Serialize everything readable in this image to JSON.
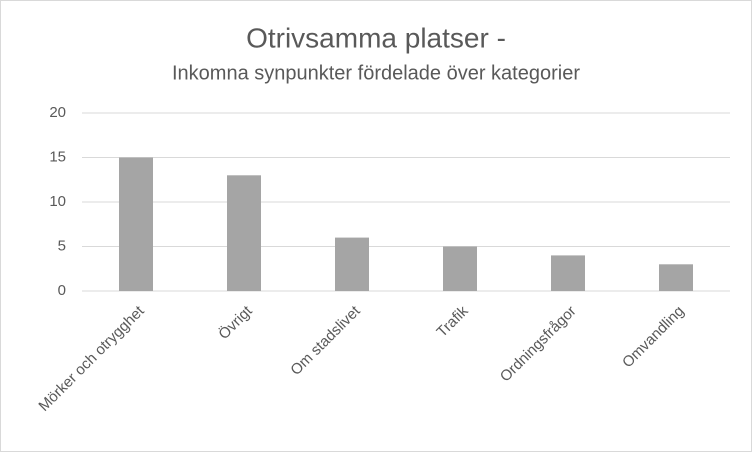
{
  "chart_data": {
    "type": "bar",
    "title": "Otrivsamma platser -",
    "subtitle": "Inkomna synpunkter fördelade över kategorier",
    "categories": [
      "Mörker och otrygghet",
      "Övrigt",
      "Om stadslivet",
      "Trafik",
      "Ordningsfrågor",
      "Omvandling"
    ],
    "values": [
      15,
      13,
      6,
      5,
      4,
      3
    ],
    "color": "#a5a5a5",
    "ylim": [
      0,
      20
    ],
    "yticks": [
      0,
      5,
      10,
      15,
      20
    ],
    "grid": true
  }
}
